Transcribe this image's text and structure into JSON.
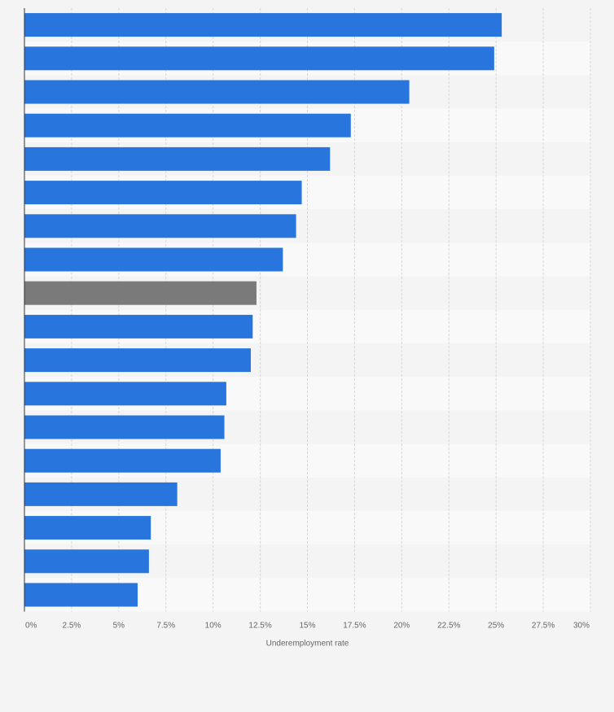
{
  "chart_data": {
    "type": "bar",
    "orientation": "horizontal",
    "xlabel": "Underemployment rate",
    "xlim": [
      0,
      30
    ],
    "xticks": [
      "0%",
      "2.5%",
      "5%",
      "7.5%",
      "10%",
      "12.5%",
      "15%",
      "17.5%",
      "20%",
      "22.5%",
      "25%",
      "27.5%",
      "30%"
    ],
    "values": [
      25.3,
      24.9,
      20.4,
      17.3,
      16.2,
      14.7,
      14.4,
      13.7,
      12.3,
      12.1,
      12.0,
      10.7,
      10.6,
      10.4,
      8.1,
      6.7,
      6.6,
      6.0
    ],
    "highlight_index": 8,
    "grid": true,
    "colors": {
      "bar": "#2876dd",
      "highlight": "#7a7a7a",
      "band_a": "#f4f4f4",
      "band_b": "#f9f9f9",
      "grid": "#d6d6d6",
      "axis": "#333333",
      "tick_text": "#666666"
    }
  }
}
